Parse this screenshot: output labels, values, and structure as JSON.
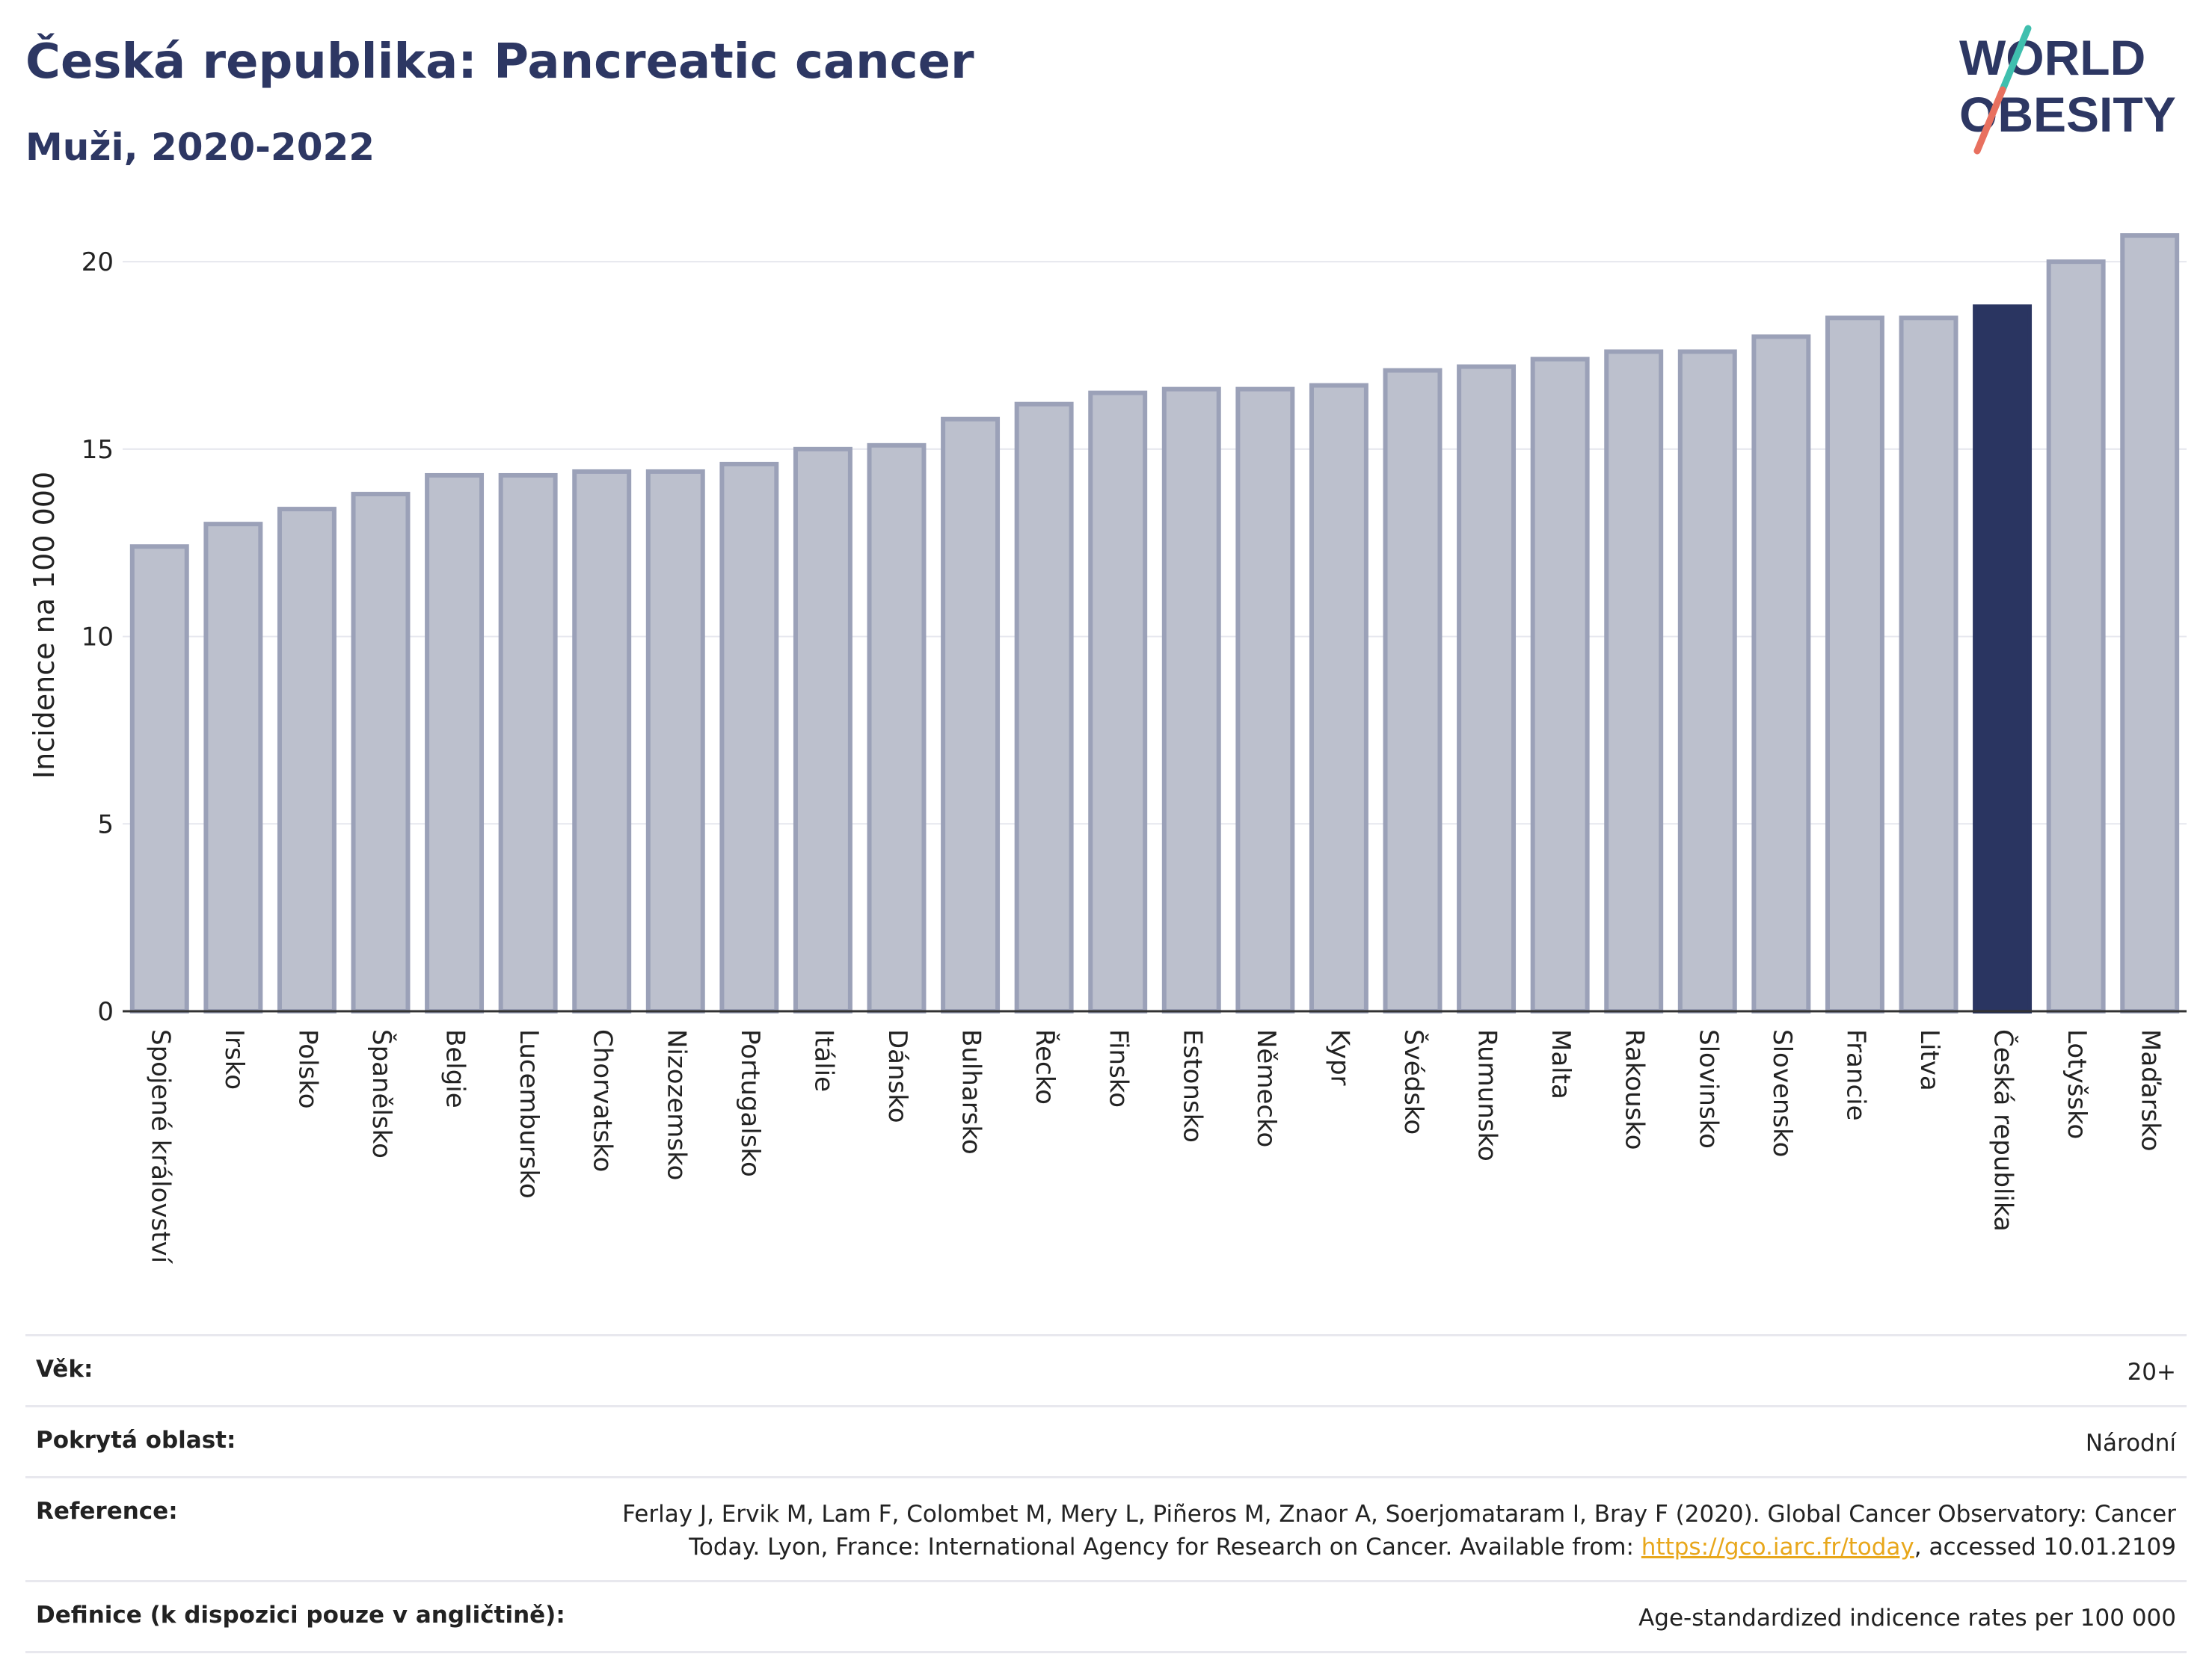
{
  "header": {
    "title": "Česká republika: Pancreatic cancer",
    "subtitle": "Muži, 2020-2022",
    "logo_line1": "WORLD",
    "logo_line2": "OBESITY"
  },
  "colors": {
    "highlight": "#2a3561",
    "bar_fill": "#bcc0cd",
    "bar_stroke": "#9ba1b8",
    "title": "#2d3763",
    "logo_teal": "#3fbfae",
    "logo_coral": "#e8705f",
    "link": "#e8a71b"
  },
  "chart_data": {
    "type": "bar",
    "ylabel": "Incidence na 100 000",
    "xlabel": "",
    "ylim": [
      0,
      21
    ],
    "yticks": [
      0,
      5,
      10,
      15,
      20
    ],
    "grid": true,
    "highlight": "Česká republika",
    "categories": [
      "Spojené království",
      "Irsko",
      "Polsko",
      "Španělsko",
      "Belgie",
      "Lucembursko",
      "Chorvatsko",
      "Nizozemsko",
      "Portugalsko",
      "Itálie",
      "Dánsko",
      "Bulharsko",
      "Řecko",
      "Finsko",
      "Estonsko",
      "Německo",
      "Kypr",
      "Švédsko",
      "Rumunsko",
      "Malta",
      "Rakousko",
      "Slovinsko",
      "Slovensko",
      "Francie",
      "Litva",
      "Česká republika",
      "Lotyšsko",
      "Maďarsko"
    ],
    "values": [
      12.4,
      13.0,
      13.4,
      13.8,
      14.3,
      14.3,
      14.4,
      14.4,
      14.6,
      15.0,
      15.1,
      15.8,
      16.2,
      16.5,
      16.6,
      16.6,
      16.7,
      17.1,
      17.2,
      17.4,
      17.6,
      17.6,
      18.0,
      18.5,
      18.5,
      18.8,
      20.0,
      20.7
    ]
  },
  "info": {
    "age_label": "Věk:",
    "age_value": "20+",
    "area_label": "Pokrytá oblast:",
    "area_value": "Národní",
    "ref_label": "Reference:",
    "ref_text_1": "Ferlay J, Ervik M, Lam F, Colombet M, Mery L, Piñeros M, Znaor A, Soerjomataram I, Bray F (2020). Global Cancer Observatory: Cancer",
    "ref_text_2": "Today. Lyon, France: International Agency for Research on Cancer. Available from: ",
    "ref_link": "https://gco.iarc.fr/today",
    "ref_text_3": ", accessed 10.01.2109",
    "def_label": "Definice (k dispozici pouze v angličtině):",
    "def_value": "Age-standardized indicence rates per 100 000"
  }
}
